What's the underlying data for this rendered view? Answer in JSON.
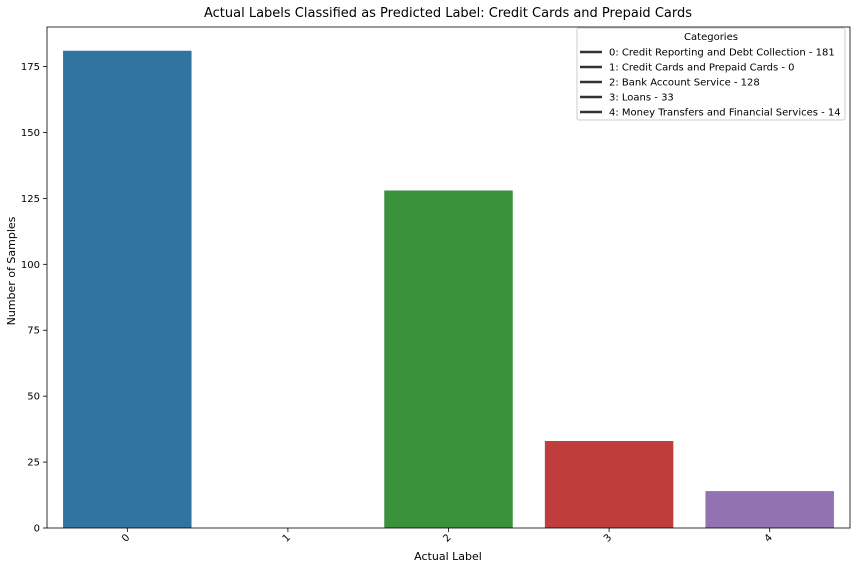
{
  "chart_data": {
    "type": "bar",
    "title": "Actual Labels Classified as Predicted Label: Credit Cards and Prepaid Cards",
    "xlabel": "Actual Label",
    "ylabel": "Number of Samples",
    "categories": [
      "0",
      "1",
      "2",
      "3",
      "4"
    ],
    "values": [
      181,
      0,
      128,
      33,
      14
    ],
    "colors": [
      "#3274a1",
      "#e1812c",
      "#3a923a",
      "#c03d3e",
      "#9372b2"
    ],
    "ylim": [
      0,
      190
    ],
    "yticks": [
      0,
      25,
      50,
      75,
      100,
      125,
      150,
      175
    ],
    "xtick_rotation": 45,
    "grid": false,
    "legend": {
      "title": "Categories",
      "position": "top-right",
      "entries": [
        "0: Credit Reporting and Debt Collection - 181",
        "1: Credit Cards and Prepaid Cards - 0",
        "2: Bank Account Service - 128",
        "3: Loans - 33",
        "4: Money Transfers and Financial Services - 14"
      ]
    }
  }
}
